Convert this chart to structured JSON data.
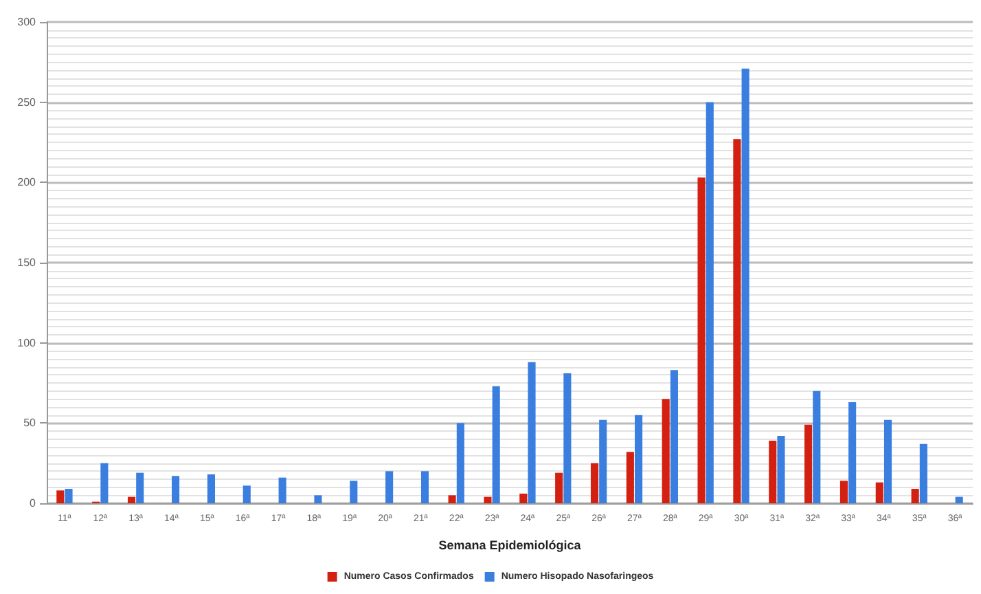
{
  "chart_data": {
    "type": "bar",
    "xlabel": "Semana Epidemiológica",
    "categories": [
      "11ª",
      "12ª",
      "13ª",
      "14ª",
      "15ª",
      "16ª",
      "17ª",
      "18ª",
      "19ª",
      "20ª",
      "21ª",
      "22ª",
      "23ª",
      "24ª",
      "25ª",
      "26ª",
      "27ª",
      "28ª",
      "29ª",
      "30ª",
      "31ª",
      "32ª",
      "33ª",
      "34ª",
      "35ª",
      "36ª"
    ],
    "series": [
      {
        "name": "Numero Casos Confirmados",
        "color": "#d42010",
        "values": [
          8,
          1,
          4,
          0,
          0,
          0,
          0,
          0,
          0,
          0,
          0,
          5,
          4,
          6,
          19,
          25,
          32,
          65,
          203,
          227,
          39,
          49,
          14,
          13,
          9,
          0
        ]
      },
      {
        "name": "Numero Hisopado Nasofaringeos",
        "color": "#3a7ee0",
        "values": [
          9,
          25,
          19,
          17,
          18,
          11,
          16,
          5,
          14,
          20,
          20,
          50,
          73,
          88,
          81,
          52,
          55,
          83,
          250,
          271,
          42,
          70,
          63,
          52,
          37,
          4
        ]
      }
    ],
    "ylim": [
      0,
      300
    ],
    "yticks": [
      0,
      50,
      100,
      150,
      200,
      250,
      300
    ],
    "grid": "y",
    "legend": "bottom"
  }
}
